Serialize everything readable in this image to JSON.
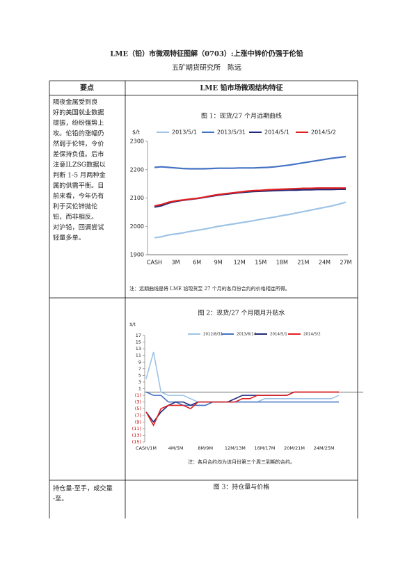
{
  "header": {
    "title": "LME（铅）市微观特征图解（0703）:上涨中锌价仍强于伦铅",
    "author": "五矿期货研究所　陈远"
  },
  "table": {
    "head": [
      "要点",
      "LME 铅市场微观结构特征"
    ],
    "rows": [
      {
        "left": [
          "隔夜金属受到良",
          "好的美国就业数据",
          "提振，纷纷强势上",
          "攻。伦铅的涨幅仍",
          "然弱于伦锌，令价",
          "差保持负值。后市",
          "注意ILZSG数据以",
          "判断 1-5 月两种金",
          "属的供需平衡。目",
          "前来看，今年仍有",
          "利于买伦锌抛伦",
          "铅，而非相反。",
          "对沪铅，回调尝试",
          "轻量多单。"
        ]
      },
      {
        "left": []
      },
      {
        "left": [
          "持仓量-至手，成交量",
          "-至。"
        ],
        "right_title": "图 3：持仓量与价格"
      }
    ]
  },
  "chart_data": [
    {
      "type": "line",
      "title": "图 1：现货/27 个月远期曲线",
      "y_label": "$/t",
      "note": "注：远期曲线是将 LME 铅现货至 27 个月的各月份合约的价格相连所得。",
      "categories": [
        "CASH",
        null,
        null,
        "3M",
        null,
        null,
        "6M",
        null,
        null,
        "9M",
        null,
        null,
        "12M",
        null,
        null,
        "15M",
        null,
        null,
        "18M",
        null,
        null,
        "21M",
        null,
        null,
        "24M",
        null,
        null,
        "27M"
      ],
      "ylim": [
        1900,
        2300
      ],
      "yticks": [
        1900,
        2000,
        2100,
        2200,
        2300
      ],
      "grid": false,
      "series": [
        {
          "name": "2013/5/1",
          "color": "#9dc3e6",
          "values": [
            1960,
            1963,
            1970,
            1973,
            1977,
            1982,
            1986,
            1990,
            1995,
            2000,
            2004,
            2008,
            2012,
            2016,
            2020,
            2025,
            2029,
            2033,
            2038,
            2042,
            2047,
            2052,
            2057,
            2062,
            2067,
            2072,
            2078,
            2085
          ]
        },
        {
          "name": "2013/5/31",
          "color": "#4472c4",
          "values": [
            2208,
            2210,
            2208,
            2206,
            2204,
            2203,
            2203,
            2203,
            2204,
            2205,
            2205,
            2205,
            2206,
            2206,
            2206,
            2207,
            2208,
            2210,
            2213,
            2216,
            2220,
            2224,
            2228,
            2232,
            2236,
            2240,
            2243,
            2246
          ]
        },
        {
          "name": "2014/5/1",
          "color": "#1f2a7a",
          "values": [
            2068,
            2073,
            2082,
            2088,
            2092,
            2095,
            2098,
            2102,
            2106,
            2110,
            2113,
            2116,
            2119,
            2121,
            2123,
            2124,
            2125,
            2126,
            2127,
            2128,
            2128,
            2129,
            2129,
            2130,
            2130,
            2130,
            2131,
            2131
          ]
        },
        {
          "name": "2014/5/2",
          "color": "#e02020",
          "values": [
            2072,
            2077,
            2085,
            2090,
            2093,
            2096,
            2099,
            2103,
            2108,
            2112,
            2115,
            2118,
            2121,
            2124,
            2126,
            2127,
            2129,
            2130,
            2131,
            2132,
            2133,
            2134,
            2134,
            2135,
            2135,
            2135,
            2135,
            2135
          ]
        }
      ]
    },
    {
      "type": "line",
      "title": "图 2：现货/27 个月隔月升贴水",
      "y_label": "$/t",
      "note": "注：各月合约均为该月份第三个周三到期的合约。",
      "categories": [
        "CASH/1M",
        null,
        null,
        null,
        "4M/5M",
        null,
        null,
        null,
        "8M/9M",
        null,
        null,
        null,
        "12M/13M",
        null,
        null,
        null,
        "16M/17M",
        null,
        null,
        null,
        "20M/21M",
        null,
        null,
        null,
        "24M/25M",
        null,
        null
      ],
      "ylim": [
        -15,
        17
      ],
      "yticks": [
        17,
        15,
        13,
        11,
        9,
        7,
        5,
        3,
        1,
        {
          "value": -1,
          "label": "(1)"
        },
        {
          "value": -3,
          "label": "(3)"
        },
        {
          "value": -5,
          "label": "(5)"
        },
        {
          "value": -7,
          "label": "(7)"
        },
        {
          "value": -9,
          "label": "(9)"
        },
        {
          "value": -11,
          "label": "(11)"
        },
        {
          "value": -13,
          "label": "(13)"
        },
        {
          "value": -15,
          "label": "(15)"
        }
      ],
      "negative_tick_color": "#c00000",
      "grid": false,
      "series": [
        {
          "name": "2012/8/31",
          "color": "#9dc3e6",
          "values": [
            4,
            12,
            0,
            -1,
            -1,
            -1,
            -2,
            -3,
            -3,
            -3,
            -3,
            -3,
            -3,
            -3,
            -3,
            -3,
            -2,
            -2,
            -2,
            -2,
            -2,
            -2,
            -2,
            -2,
            -2,
            -2,
            -1
          ]
        },
        {
          "name": "2013/6/14",
          "color": "#4472c4",
          "values": [
            0,
            -1,
            -1,
            -3,
            -3,
            -4,
            -4,
            -4,
            -4,
            -3,
            -3,
            -3,
            -3,
            -3,
            -3,
            -3,
            -3,
            -3,
            -3,
            -3,
            -3,
            -3,
            -3,
            -3,
            -3,
            -3,
            -3
          ]
        },
        {
          "name": "2014/5/1",
          "color": "#1f2a7a",
          "values": [
            -6,
            -9,
            -6,
            -4,
            -3,
            -3,
            -4,
            -3,
            -3,
            -3,
            -3,
            -3,
            -2,
            -1,
            -1,
            -1,
            -1,
            -1,
            -1,
            -1,
            0,
            0,
            0,
            0,
            0,
            0,
            0
          ]
        },
        {
          "name": "2014/5/2",
          "color": "#e02020",
          "values": [
            -6,
            -10,
            -5,
            -4,
            -4,
            -4,
            -5,
            -3,
            -3,
            -3,
            -3,
            -3,
            -3,
            -2,
            -2,
            -1,
            -1,
            -1,
            -1,
            -1,
            0,
            0,
            0,
            0,
            0,
            0,
            0
          ]
        }
      ]
    }
  ]
}
